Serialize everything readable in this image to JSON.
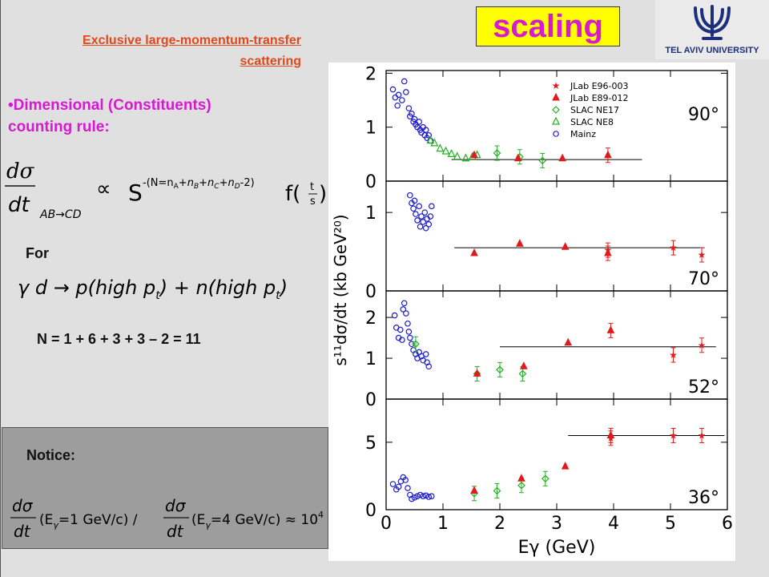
{
  "header": {
    "link_line1": "Exclusive large-momentum-transfer",
    "link_line2": "scattering",
    "badge": "scaling",
    "logo_caption": "TEL AVIV UNIVERSITY"
  },
  "body": {
    "rule_heading_line1": "•Dimensional (Constituents)",
    "rule_heading_line2": "counting  rule:",
    "formula1": {
      "lhs_num": "dσ",
      "lhs_den": "dt",
      "subscript": "AB→CD",
      "proportional": "∝",
      "s_letter": "S",
      "exponent": "-(N=n",
      "n_a": "A",
      "plus_nb": "+n",
      "n_b": "B",
      "plus_nc": "+n",
      "n_c": "C",
      "plus_nd": "+n",
      "n_d": "D",
      "exp_end": "-2)",
      "f_letter": "f(",
      "frac_num": "t",
      "frac_den": "s",
      "close": ")"
    },
    "for_label": "For",
    "formula2": "γ d → p(high p",
    "formula2_sub": "t",
    "formula2_mid": ") + n(high  p",
    "formula2_end": ")",
    "n_equation": "N = 1 + 6 + 3 + 3 – 2 = 11",
    "notice_label": "Notice:",
    "notice_formula": {
      "part1": "(E",
      "gamma": "γ",
      "part2": "=1 GeV/c) /",
      "part3": "(E",
      "part4": "=4 GeV/c) ≈ 10",
      "power": "4"
    }
  },
  "chart_data": {
    "type": "scatter",
    "xlabel": "Eγ (GeV)",
    "ylabel": "s¹¹dσ/dt (kb GeV²⁰)",
    "xlim": [
      0,
      6
    ],
    "xticks": [
      "0",
      "1",
      "2",
      "3",
      "4",
      "5",
      "6"
    ],
    "legend": [
      {
        "name": "JLab E96-003",
        "marker": "star",
        "color": "#e01b1b"
      },
      {
        "name": "JLab E89-012",
        "marker": "triangle-filled",
        "color": "#e01b1b"
      },
      {
        "name": "SLAC NE17",
        "marker": "diamond",
        "color": "#22b022"
      },
      {
        "name": "SLAC NE8",
        "marker": "triangle-open",
        "color": "#22b022"
      },
      {
        "name": "Mainz",
        "marker": "circle",
        "color": "#1c1ccc"
      }
    ],
    "panels": [
      {
        "angle": "90°",
        "ylim": [
          0,
          2.05
        ],
        "yticks": [
          0,
          1,
          2
        ],
        "fit": {
          "x0": 1.15,
          "x1": 4.5,
          "y": 0.4
        },
        "series": [
          {
            "name": "Mainz",
            "marker": "circle",
            "color": "#1c1ccc",
            "points": [
              [
                0.12,
                1.7
              ],
              [
                0.16,
                1.55
              ],
              [
                0.2,
                1.4
              ],
              [
                0.22,
                1.6
              ],
              [
                0.28,
                1.5
              ],
              [
                0.32,
                1.85
              ],
              [
                0.35,
                1.65
              ],
              [
                0.4,
                1.35
              ],
              [
                0.42,
                1.2
              ],
              [
                0.45,
                1.25
              ],
              [
                0.48,
                1.1
              ],
              [
                0.5,
                1.15
              ],
              [
                0.52,
                1.05
              ],
              [
                0.55,
                1.0
              ],
              [
                0.58,
                1.1
              ],
              [
                0.6,
                0.95
              ],
              [
                0.62,
                0.9
              ],
              [
                0.65,
                1.0
              ],
              [
                0.68,
                0.85
              ],
              [
                0.7,
                0.95
              ],
              [
                0.72,
                0.8
              ],
              [
                0.75,
                0.85
              ],
              [
                0.78,
                0.75
              ]
            ]
          },
          {
            "name": "SLAC NE8",
            "marker": "triangle-open",
            "color": "#22b022",
            "points": [
              [
                0.78,
                0.75
              ],
              [
                0.85,
                0.7
              ],
              [
                0.95,
                0.6
              ],
              [
                1.05,
                0.55
              ],
              [
                1.15,
                0.5
              ],
              [
                1.25,
                0.45
              ],
              [
                1.4,
                0.42
              ],
              [
                1.52,
                0.45
              ],
              [
                1.6,
                0.48
              ]
            ]
          },
          {
            "name": "SLAC NE17",
            "marker": "diamond",
            "color": "#22b022",
            "points": [
              [
                1.95,
                0.52
              ],
              [
                2.35,
                0.45
              ],
              [
                2.75,
                0.38
              ]
            ]
          },
          {
            "name": "JLab E89-012",
            "marker": "triangle-filled",
            "color": "#e01b1b",
            "points": [
              [
                1.55,
                0.48
              ],
              [
                2.32,
                0.42
              ],
              [
                3.1,
                0.42
              ],
              [
                3.9,
                0.48
              ]
            ]
          }
        ]
      },
      {
        "angle": "70°",
        "ylim": [
          0,
          1.4
        ],
        "yticks": [
          0,
          1
        ],
        "fit": {
          "x0": 1.2,
          "x1": 5.6,
          "y": 0.55
        },
        "series": [
          {
            "name": "Mainz",
            "marker": "circle",
            "color": "#1c1ccc",
            "points": [
              [
                0.42,
                1.22
              ],
              [
                0.45,
                1.12
              ],
              [
                0.48,
                1.05
              ],
              [
                0.5,
                1.15
              ],
              [
                0.52,
                0.98
              ],
              [
                0.55,
                0.9
              ],
              [
                0.58,
                1.08
              ],
              [
                0.6,
                0.82
              ],
              [
                0.62,
                0.95
              ],
              [
                0.65,
                0.88
              ],
              [
                0.68,
                1.0
              ],
              [
                0.7,
                0.8
              ],
              [
                0.72,
                0.92
              ],
              [
                0.75,
                0.85
              ],
              [
                0.78,
                0.95
              ],
              [
                0.8,
                1.08
              ]
            ]
          },
          {
            "name": "JLab E89-012",
            "marker": "triangle-filled",
            "color": "#e01b1b",
            "points": [
              [
                1.55,
                0.48
              ],
              [
                2.35,
                0.6
              ],
              [
                3.15,
                0.56
              ],
              [
                3.9,
                0.48
              ]
            ]
          },
          {
            "name": "JLab E96-003",
            "marker": "star",
            "color": "#e01b1b",
            "points": [
              [
                3.9,
                0.52
              ],
              [
                5.05,
                0.55
              ],
              [
                5.55,
                0.46
              ]
            ]
          }
        ]
      },
      {
        "angle": "52°",
        "ylim": [
          0,
          2.65
        ],
        "yticks": [
          0,
          1,
          2
        ],
        "fit": {
          "x0": 2.0,
          "x1": 5.8,
          "y": 1.28
        },
        "series": [
          {
            "name": "Mainz",
            "marker": "circle",
            "color": "#1c1ccc",
            "points": [
              [
                0.15,
                2.05
              ],
              [
                0.18,
                1.75
              ],
              [
                0.22,
                1.5
              ],
              [
                0.25,
                1.7
              ],
              [
                0.28,
                1.45
              ],
              [
                0.3,
                2.2
              ],
              [
                0.32,
                2.35
              ],
              [
                0.35,
                2.1
              ],
              [
                0.38,
                1.85
              ],
              [
                0.4,
                1.65
              ],
              [
                0.42,
                1.5
              ],
              [
                0.45,
                1.35
              ],
              [
                0.48,
                1.2
              ],
              [
                0.52,
                1.1
              ],
              [
                0.55,
                1.0
              ],
              [
                0.58,
                1.15
              ],
              [
                0.62,
                1.05
              ],
              [
                0.65,
                0.95
              ],
              [
                0.7,
                1.1
              ],
              [
                0.72,
                0.9
              ],
              [
                0.75,
                0.8
              ]
            ]
          },
          {
            "name": "SLAC NE17",
            "marker": "diamond",
            "color": "#22b022",
            "points": [
              [
                0.52,
                1.35
              ],
              [
                1.6,
                0.62
              ],
              [
                2.0,
                0.72
              ],
              [
                2.4,
                0.62
              ]
            ]
          },
          {
            "name": "JLab E89-012",
            "marker": "triangle-filled",
            "color": "#e01b1b",
            "points": [
              [
                1.6,
                0.62
              ],
              [
                2.42,
                0.8
              ],
              [
                3.2,
                1.38
              ],
              [
                3.95,
                1.68
              ]
            ]
          },
          {
            "name": "JLab E96-003",
            "marker": "star",
            "color": "#e01b1b",
            "points": [
              [
                5.05,
                1.08
              ],
              [
                5.55,
                1.32
              ]
            ]
          }
        ]
      },
      {
        "angle": "36°",
        "ylim": [
          0,
          8.2
        ],
        "yticks": [
          0,
          5
        ],
        "fit": {
          "x0": 3.2,
          "x1": 5.95,
          "y": 5.5
        },
        "series": [
          {
            "name": "Mainz",
            "marker": "circle",
            "color": "#1c1ccc",
            "points": [
              [
                0.12,
                1.9
              ],
              [
                0.18,
                1.5
              ],
              [
                0.22,
                1.7
              ],
              [
                0.26,
                2.1
              ],
              [
                0.3,
                2.4
              ],
              [
                0.34,
                2.2
              ],
              [
                0.38,
                1.6
              ],
              [
                0.42,
                1.1
              ],
              [
                0.45,
                0.8
              ],
              [
                0.5,
                0.9
              ],
              [
                0.55,
                1.0
              ],
              [
                0.6,
                1.1
              ],
              [
                0.65,
                1.0
              ],
              [
                0.7,
                1.05
              ],
              [
                0.75,
                0.95
              ],
              [
                0.8,
                1.0
              ]
            ]
          },
          {
            "name": "SLAC NE17",
            "marker": "diamond",
            "color": "#22b022",
            "points": [
              [
                1.55,
                1.2
              ],
              [
                1.95,
                1.4
              ],
              [
                2.38,
                1.8
              ],
              [
                2.8,
                2.3
              ]
            ]
          },
          {
            "name": "JLab E89-012",
            "marker": "triangle-filled",
            "color": "#e01b1b",
            "points": [
              [
                1.55,
                1.4
              ],
              [
                2.38,
                2.3
              ],
              [
                3.15,
                3.2
              ],
              [
                3.95,
                5.5
              ]
            ]
          },
          {
            "name": "JLab E96-003",
            "marker": "star",
            "color": "#e01b1b",
            "points": [
              [
                3.95,
                5.3
              ],
              [
                5.05,
                5.5
              ],
              [
                5.55,
                5.5
              ]
            ]
          }
        ]
      }
    ]
  }
}
